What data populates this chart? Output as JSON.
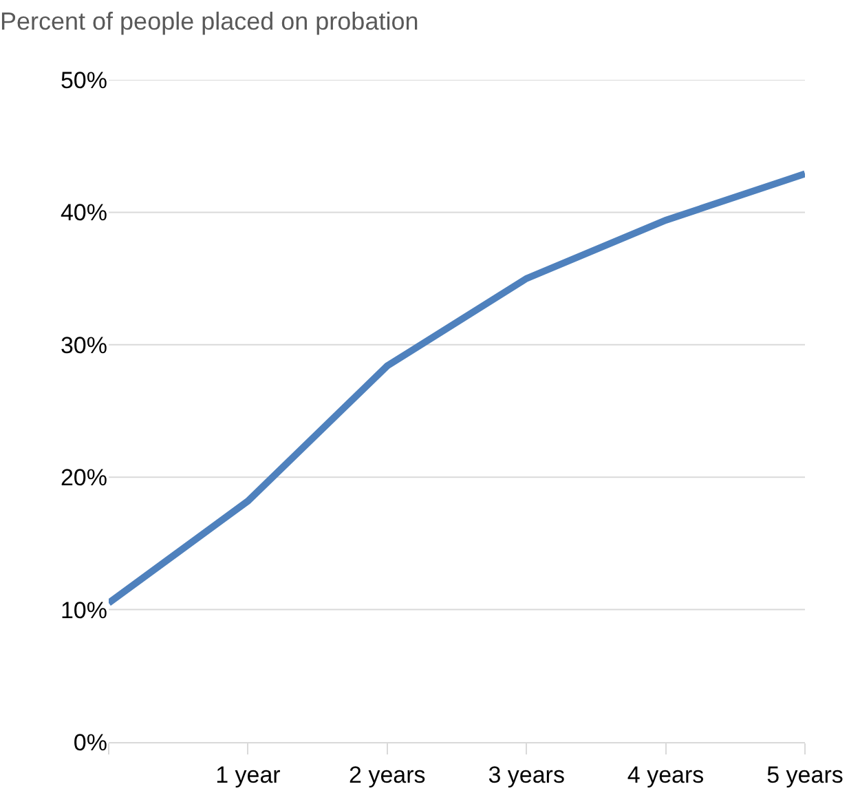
{
  "chart_data": {
    "type": "line",
    "title": "Percent of people placed on probation",
    "categories": [
      null,
      "1 year",
      "2 years",
      "3 years",
      "4 years",
      "5 years"
    ],
    "series": [
      {
        "color": "#4f81bd",
        "values": [
          10.5,
          18.2,
          28.4,
          35.0,
          39.4,
          42.9
        ]
      }
    ],
    "ylim": [
      0,
      50
    ],
    "yticks": [
      {
        "value": 0,
        "label": "0%"
      },
      {
        "value": 10,
        "label": "10%"
      },
      {
        "value": 20,
        "label": "20%"
      },
      {
        "value": 30,
        "label": "30%"
      },
      {
        "value": 40,
        "label": "40%"
      },
      {
        "value": 50,
        "label": "50%"
      }
    ],
    "grid": "y",
    "marker": "none",
    "line_style": "solid"
  }
}
